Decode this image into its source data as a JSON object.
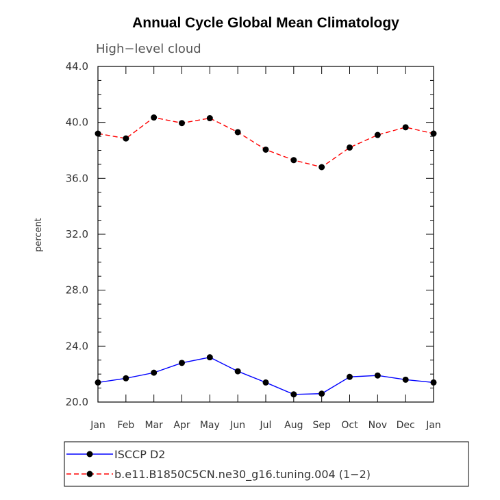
{
  "chart_data": {
    "type": "line",
    "title": "Annual Cycle Global Mean Climatology",
    "subtitle": "High−level cloud",
    "xlabel": "",
    "ylabel": "percent",
    "ylim": [
      20.0,
      44.0
    ],
    "yticks": [
      "20.0",
      "24.0",
      "28.0",
      "32.0",
      "36.0",
      "40.0",
      "44.0"
    ],
    "yticks_values": [
      20,
      24,
      28,
      32,
      36,
      40,
      44
    ],
    "categories": [
      "Jan",
      "Feb",
      "Mar",
      "Apr",
      "May",
      "Jun",
      "Jul",
      "Aug",
      "Sep",
      "Oct",
      "Nov",
      "Dec",
      "Jan"
    ],
    "series": [
      {
        "name": "ISCCP D2",
        "color": "#0000ff",
        "dash": "solid",
        "values": [
          21.4,
          21.7,
          22.1,
          22.8,
          23.2,
          22.2,
          21.4,
          20.55,
          20.6,
          21.8,
          21.9,
          21.6,
          21.4
        ]
      },
      {
        "name": "b.e11.B1850C5CN.ne30_g16.tuning.004 (1−2)",
        "color": "#ff0000",
        "dash": "dashed",
        "values": [
          39.2,
          38.85,
          40.35,
          39.95,
          40.3,
          39.3,
          38.05,
          37.3,
          36.8,
          38.2,
          39.1,
          39.65,
          39.2
        ]
      }
    ],
    "legend_position": "bottom"
  }
}
